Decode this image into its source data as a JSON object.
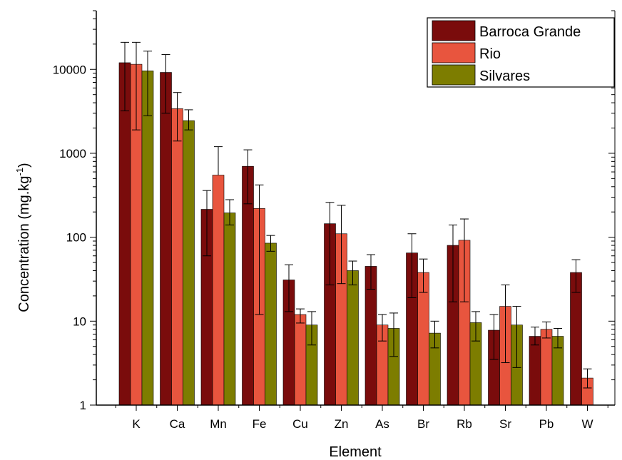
{
  "chart_data": {
    "type": "bar",
    "title": "",
    "xlabel": "Element",
    "ylabel_main": "Concentration (mg.kg",
    "ylabel_sup": "-1",
    "ylabel_close": ")",
    "yscale": "log",
    "ylim": [
      1,
      50000
    ],
    "yticks": [
      1,
      10,
      100,
      1000,
      10000
    ],
    "ytick_labels": [
      "1",
      "10",
      "100",
      "1000",
      "10000"
    ],
    "legend_position": "top-right",
    "categories": [
      "K",
      "Ca",
      "Mn",
      "Fe",
      "Cu",
      "Zn",
      "As",
      "Br",
      "Rb",
      "Sr",
      "Pb",
      "W"
    ],
    "series": [
      {
        "name": "Barroca Grande",
        "color": "#7a0c0c",
        "values": [
          12000,
          9200,
          215,
          700,
          31,
          145,
          45,
          65,
          80,
          7.8,
          6.6,
          38
        ],
        "err_low": [
          3200,
          3000,
          60,
          250,
          13,
          27,
          24,
          19,
          17,
          3.5,
          5.2,
          22
        ],
        "err_high": [
          21000,
          15000,
          360,
          1100,
          47,
          260,
          62,
          110,
          140,
          12,
          8.5,
          54
        ]
      },
      {
        "name": "Rio",
        "color": "#e8553e",
        "values": [
          11500,
          3400,
          550,
          220,
          12,
          110,
          9,
          38,
          92,
          15,
          8,
          2.1
        ],
        "err_low": [
          1900,
          1400,
          null,
          12,
          9.5,
          28,
          5.8,
          22,
          17,
          3.2,
          6.3,
          1.6
        ],
        "err_high": [
          21000,
          5300,
          1200,
          420,
          14,
          240,
          12,
          55,
          165,
          27,
          9.8,
          2.7
        ]
      },
      {
        "name": "Silvares",
        "color": "#7d7d00",
        "values": [
          9600,
          2450,
          195,
          85,
          9,
          40,
          8.2,
          7.2,
          9.6,
          9,
          6.6,
          null
        ],
        "err_low": [
          2800,
          1900,
          140,
          68,
          5.2,
          27,
          3.8,
          4.8,
          5.8,
          2.8,
          4.8,
          null
        ],
        "err_high": [
          16500,
          3300,
          280,
          105,
          13,
          52,
          12.5,
          10,
          13,
          15,
          8.2,
          null
        ]
      }
    ]
  }
}
